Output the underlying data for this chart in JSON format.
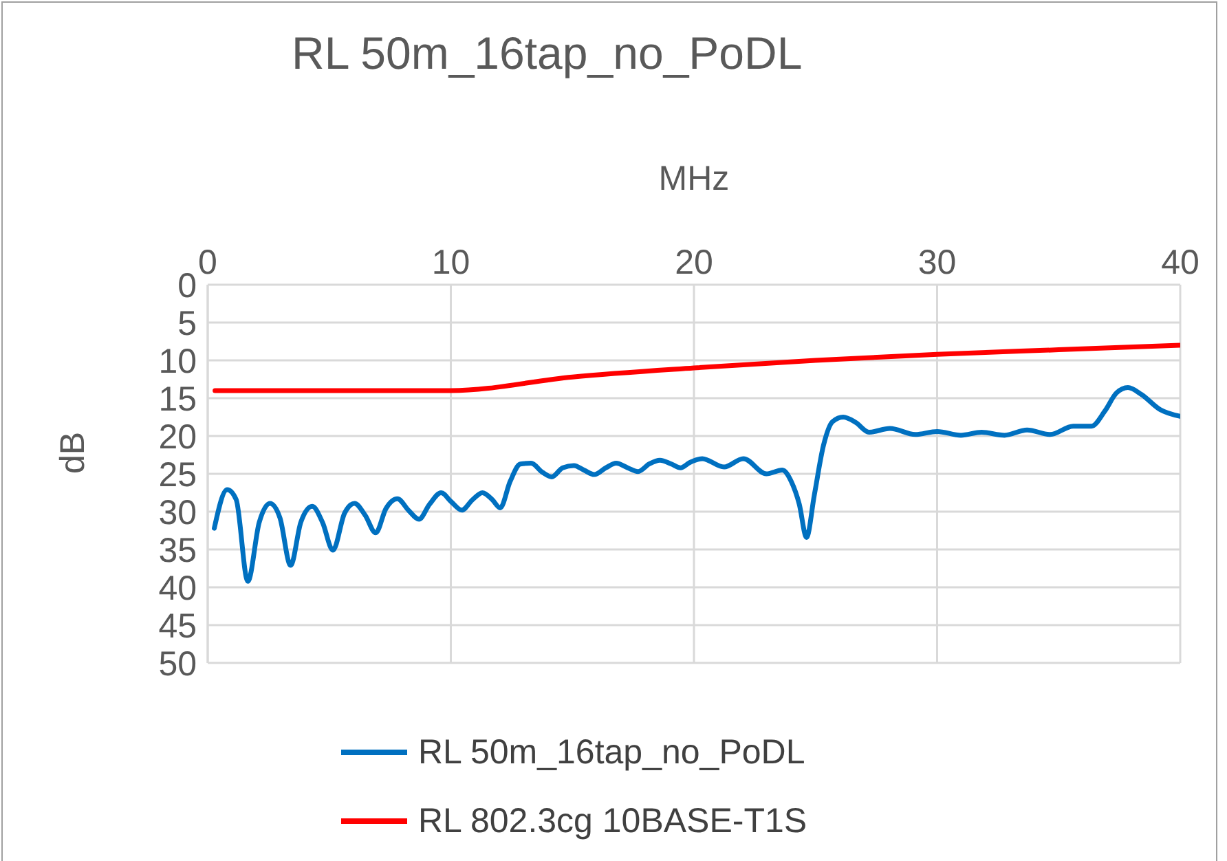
{
  "chart_data": {
    "type": "line",
    "title": "RL 50m_16tap_no_PoDL",
    "xlabel": "MHz",
    "ylabel": "dB",
    "xlim": [
      0,
      40
    ],
    "xticks": [
      0,
      10,
      20,
      30,
      40
    ],
    "ylim": [
      50,
      0
    ],
    "yticks": [
      0,
      5,
      10,
      15,
      20,
      25,
      30,
      35,
      40,
      45,
      50
    ],
    "grid": true,
    "legend": "bottom",
    "marker": "none",
    "line_style": "solid",
    "series": [
      {
        "name": "RL 50m_16tap_no_PoDL",
        "color": "#0070c0",
        "x": [
          0.27,
          0.8,
          1.17,
          1.65,
          2.12,
          2.56,
          2.97,
          3.41,
          3.83,
          4.3,
          4.72,
          5.15,
          5.63,
          6.04,
          6.48,
          6.91,
          7.33,
          7.8,
          8.28,
          8.69,
          9.13,
          9.6,
          10.02,
          10.45,
          10.9,
          11.3,
          11.7,
          12.03,
          12.44,
          12.86,
          13.3,
          13.77,
          14.15,
          14.6,
          15.06,
          15.47,
          15.9,
          16.38,
          16.8,
          17.27,
          17.7,
          18.16,
          18.6,
          19.07,
          19.45,
          19.83,
          20.34,
          21.24,
          22.03,
          22.98,
          23.63,
          24.0,
          24.33,
          24.63,
          24.95,
          25.33,
          25.7,
          26.14,
          26.65,
          27.2,
          28.06,
          29.1,
          30.0,
          30.98,
          31.83,
          32.77,
          33.7,
          34.65,
          35.6,
          36.35,
          36.9,
          37.38,
          37.85,
          38.4,
          39.17,
          40.0
        ],
        "values": [
          32.2,
          27.1,
          28.4,
          39.2,
          31.4,
          28.9,
          30.8,
          37.1,
          31.4,
          29.3,
          31.4,
          35.1,
          30.2,
          28.9,
          30.5,
          32.8,
          29.6,
          28.3,
          29.9,
          31.0,
          29.0,
          27.5,
          28.7,
          29.8,
          28.4,
          27.5,
          28.4,
          29.5,
          26.0,
          23.7,
          23.6,
          24.8,
          25.4,
          24.2,
          23.9,
          24.5,
          25.1,
          24.2,
          23.6,
          24.2,
          24.7,
          23.7,
          23.2,
          23.7,
          24.2,
          23.5,
          23.0,
          24.1,
          23.0,
          25.0,
          24.5,
          26.0,
          29.0,
          33.4,
          27.8,
          21.2,
          18.1,
          17.5,
          18.2,
          19.5,
          19.0,
          19.8,
          19.4,
          19.9,
          19.5,
          19.9,
          19.2,
          19.8,
          18.7,
          18.7,
          16.7,
          14.3,
          13.6,
          14.5,
          16.5,
          17.4
        ]
      },
      {
        "name": "RL 802.3cg 10BASE-T1S",
        "color": "#ff0000",
        "x": [
          0.3,
          10,
          15,
          20,
          25,
          30,
          35,
          40
        ],
        "values": [
          14,
          14,
          12.2,
          11,
          10,
          9.2,
          8.6,
          8
        ]
      }
    ]
  }
}
